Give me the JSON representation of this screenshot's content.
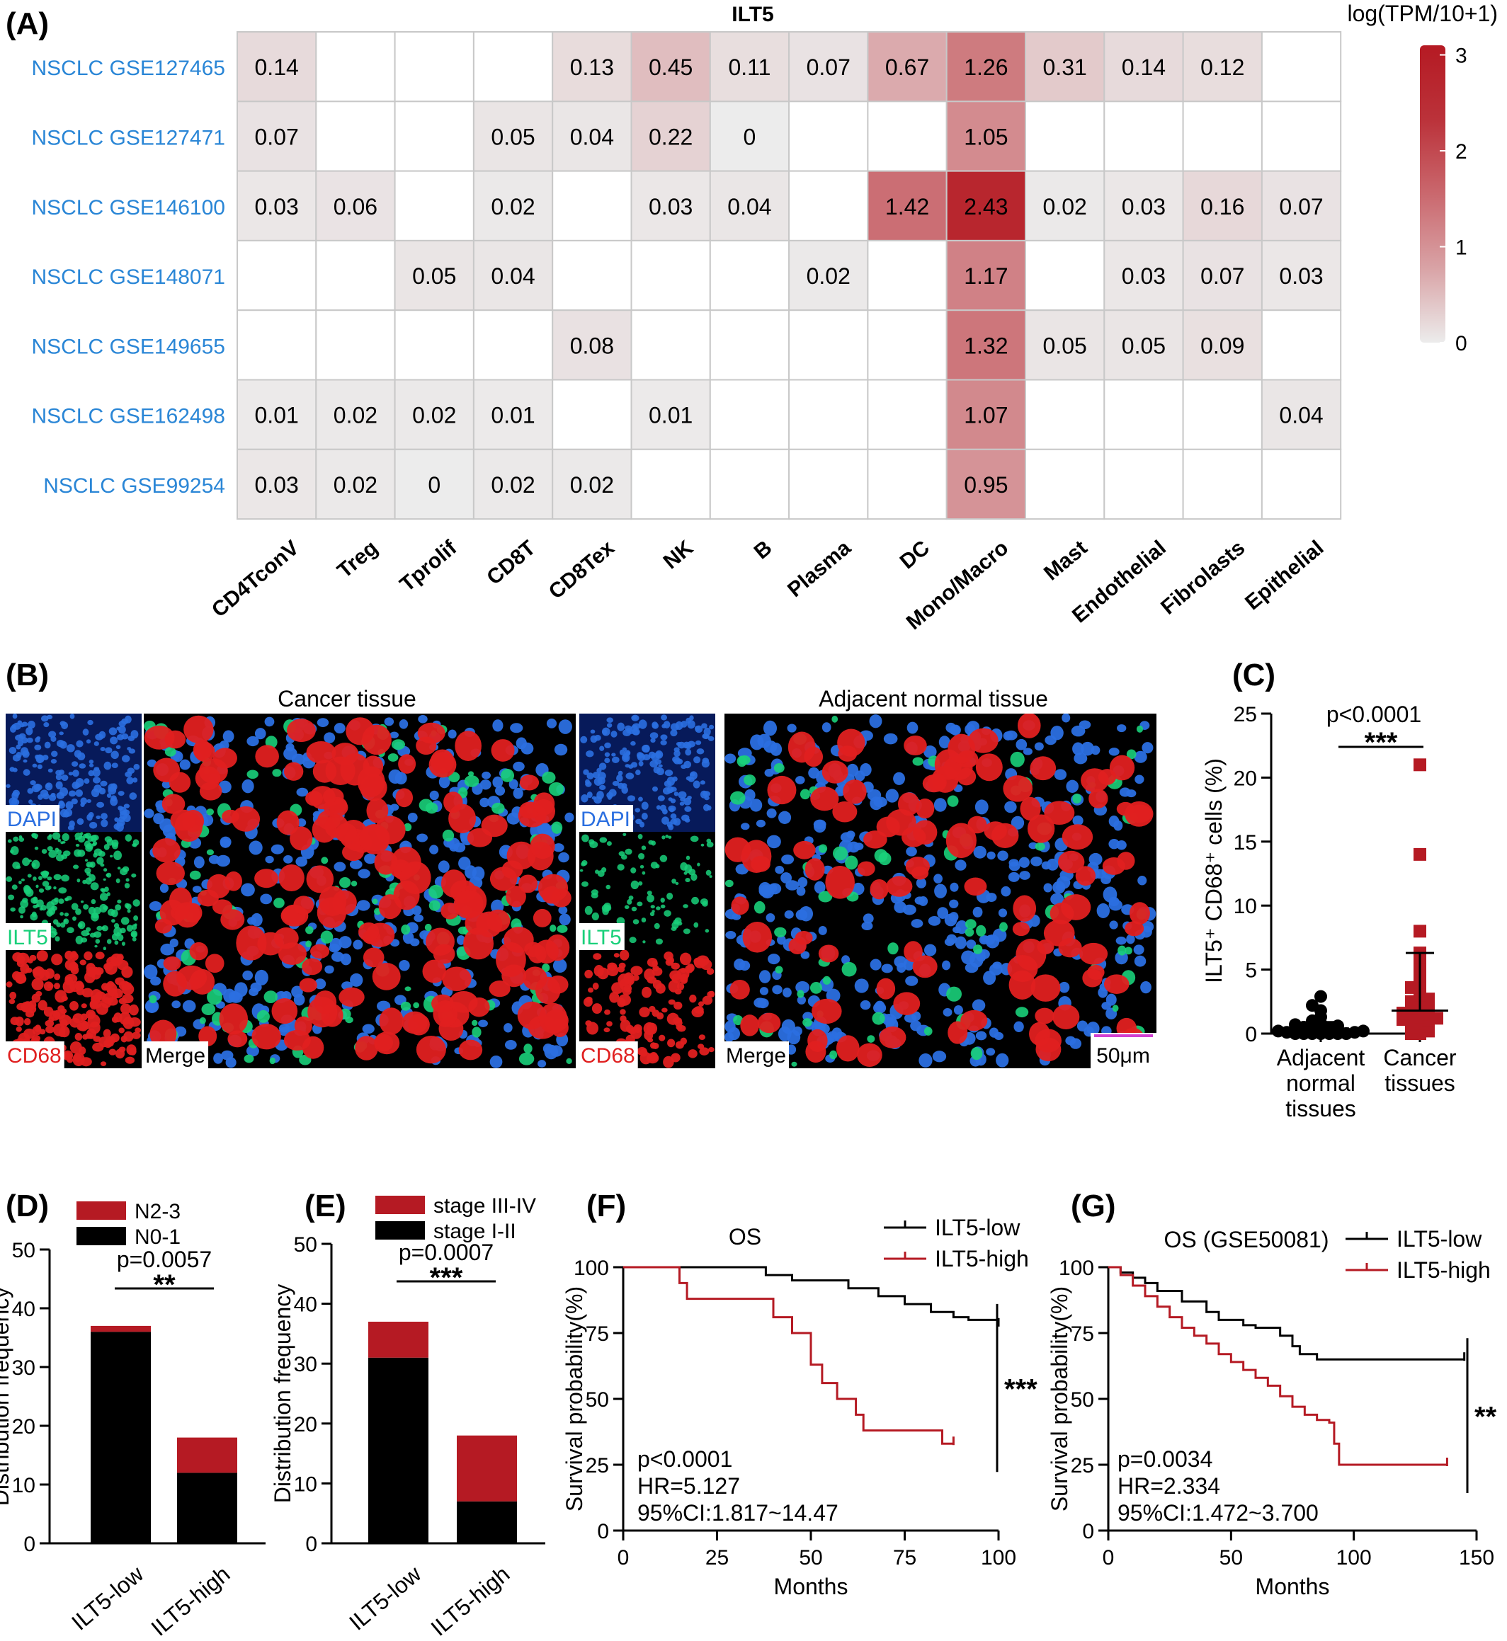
{
  "panels": {
    "A": "(A)",
    "B": "(B)",
    "C": "(C)",
    "D": "(D)",
    "E": "(E)",
    "F": "(F)",
    "G": "(G)"
  },
  "heatmap": {
    "title": "ILT5",
    "legend_title": "log(TPM/10+1)",
    "legend_ticks": [
      "3",
      "2",
      "1",
      "0"
    ],
    "legend_tick_values": [
      3,
      2,
      1,
      0
    ],
    "color_low": "#ececec",
    "color_high": "#b51a23",
    "rows": [
      "NSCLC GSE127465",
      "NSCLC GSE127471",
      "NSCLC GSE146100",
      "NSCLC GSE148071",
      "NSCLC GSE149655",
      "NSCLC GSE162498",
      "NSCLC GSE99254"
    ],
    "columns": [
      "CD4TconV",
      "Treg",
      "Tprolif",
      "CD8T",
      "CD8Tex",
      "NK",
      "B",
      "Plasma",
      "DC",
      "Mono/Macro",
      "Mast",
      "Endothelial",
      "Fibrolasts",
      "Epithelial"
    ],
    "values": [
      [
        "0.14",
        "",
        "",
        "",
        "0.13",
        "0.45",
        "0.11",
        "0.07",
        "0.67",
        "1.26",
        "0.31",
        "0.14",
        "0.12",
        ""
      ],
      [
        "0.07",
        "",
        "",
        "0.05",
        "0.04",
        "0.22",
        "0",
        "",
        "",
        "1.05",
        "",
        "",
        "",
        ""
      ],
      [
        "0.03",
        "0.06",
        "",
        "0.02",
        "",
        "0.03",
        "0.04",
        "",
        "1.42",
        "2.43",
        "0.02",
        "0.03",
        "0.16",
        "0.07"
      ],
      [
        "",
        "",
        "0.05",
        "0.04",
        "",
        "",
        "",
        "0.02",
        "",
        "1.17",
        "",
        "0.03",
        "0.07",
        "0.03"
      ],
      [
        "",
        "",
        "",
        "",
        "0.08",
        "",
        "",
        "",
        "",
        "1.32",
        "0.05",
        "0.05",
        "0.09",
        ""
      ],
      [
        "0.01",
        "0.02",
        "0.02",
        "0.01",
        "",
        "0.01",
        "",
        "",
        "",
        "1.07",
        "",
        "",
        "",
        "0.04"
      ],
      [
        "0.03",
        "0.02",
        "0",
        "0.02",
        "0.02",
        "",
        "",
        "",
        "",
        "0.95",
        "",
        "",
        "",
        ""
      ]
    ]
  },
  "micrographs": {
    "cancer_title": "Cancer tissue",
    "normal_title": "Adjacent normal tissue",
    "dapi": "DAPI",
    "ilt5": "ILT5",
    "cd68": "CD68",
    "merge": "Merge",
    "scale": "50μm",
    "colors": {
      "dapi": "#2b6fe0",
      "ilt5": "#19d07a",
      "cd68": "#e02020"
    }
  },
  "chart_data": [
    {
      "id": "C",
      "type": "scatter",
      "ylabel": "ILT5⁺ CD68⁺ cells (%)",
      "ylim": [
        0,
        25
      ],
      "yticks": [
        "0",
        "5",
        "10",
        "15",
        "20",
        "25"
      ],
      "categories": [
        "Adjacent normal tissues",
        "Cancer tissues"
      ],
      "category_lines": [
        [
          "Adjacent",
          "normal",
          "tissues"
        ],
        [
          "Cancer",
          "tissues"
        ]
      ],
      "pvalue": "p<0.0001",
      "sig": "***",
      "groups": [
        {
          "name": "Adjacent normal tissues",
          "color": "#000000",
          "mean": 0.4,
          "sd_upper": 0.9,
          "points": [
            0,
            0,
            0,
            0,
            0,
            0,
            0,
            0.1,
            0.1,
            0.2,
            0.2,
            0.3,
            0.3,
            0.4,
            0.5,
            0.6,
            0.7,
            0.8,
            1.0,
            1.3,
            1.8,
            2.2,
            2.9
          ]
        },
        {
          "name": "Cancer tissues",
          "color": "#b51a23",
          "mean": 1.8,
          "sd_upper": 6.3,
          "points": [
            0,
            0,
            0.2,
            0.3,
            0.5,
            0.6,
            0.8,
            0.9,
            1.0,
            1.1,
            1.2,
            1.3,
            1.4,
            1.5,
            1.6,
            1.8,
            2.0,
            2.1,
            2.3,
            2.5,
            2.7,
            3.0,
            3.3,
            3.6,
            4.0,
            4.5,
            5.0,
            5.5,
            6.0,
            6.3,
            8.0,
            14.0,
            21.0
          ]
        }
      ]
    },
    {
      "id": "D",
      "type": "bar",
      "stacked": true,
      "ylabel": "Distribution frequency",
      "ylim": [
        0,
        50
      ],
      "yticks": [
        "0",
        "10",
        "20",
        "30",
        "40",
        "50"
      ],
      "categories": [
        "ILT5-low",
        "ILT5-high"
      ],
      "series": [
        {
          "name": "N0-1",
          "color": "#000000",
          "values": [
            36,
            12
          ]
        },
        {
          "name": "N2-3",
          "color": "#b51a23",
          "values": [
            1,
            6
          ]
        }
      ],
      "pvalue": "p=0.0057",
      "sig": "**"
    },
    {
      "id": "E",
      "type": "bar",
      "stacked": true,
      "ylabel": "Distribution frequency",
      "ylim": [
        0,
        50
      ],
      "yticks": [
        "0",
        "10",
        "20",
        "30",
        "40",
        "50"
      ],
      "categories": [
        "ILT5-low",
        "ILT5-high"
      ],
      "series": [
        {
          "name": "stage I-II",
          "color": "#000000",
          "values": [
            31,
            7
          ]
        },
        {
          "name": "stage III-IV",
          "color": "#b51a23",
          "values": [
            6,
            11
          ]
        }
      ],
      "pvalue": "p=0.0007",
      "sig": "***"
    },
    {
      "id": "F",
      "type": "line",
      "title": "OS",
      "xlabel": "Months",
      "ylabel": "Survival probability(%)",
      "xlim": [
        0,
        100
      ],
      "ylim": [
        0,
        100
      ],
      "xticks": [
        "0",
        "25",
        "50",
        "75",
        "100"
      ],
      "yticks": [
        "0",
        "25",
        "50",
        "75",
        "100"
      ],
      "stats": [
        "p<0.0001",
        "HR=5.127",
        "95%CI:1.817~14.47"
      ],
      "sig": "***",
      "series": [
        {
          "name": "ILT5-low",
          "color": "#000000",
          "x": [
            0,
            38,
            45,
            60,
            68,
            75,
            82,
            88,
            92,
            100
          ],
          "y": [
            100,
            97,
            95,
            92,
            89,
            86,
            83,
            81,
            80,
            78
          ]
        },
        {
          "name": "ILT5-high",
          "color": "#b51a23",
          "x": [
            0,
            15,
            17,
            40,
            45,
            50,
            53,
            57,
            62,
            64,
            66,
            85,
            88
          ],
          "y": [
            100,
            94,
            88,
            81,
            75,
            63,
            56,
            50,
            44,
            38,
            38,
            33,
            33
          ]
        }
      ]
    },
    {
      "id": "G",
      "type": "line",
      "title": "OS (GSE50081)",
      "xlabel": "Months",
      "ylabel": "Survival probability(%)",
      "xlim": [
        0,
        150
      ],
      "ylim": [
        0,
        100
      ],
      "xticks": [
        "0",
        "50",
        "100",
        "150"
      ],
      "yticks": [
        "0",
        "25",
        "50",
        "75",
        "100"
      ],
      "stats": [
        "p=0.0034",
        "HR=2.334",
        "95%CI:1.472~3.700"
      ],
      "sig": "**",
      "series": [
        {
          "name": "ILT5-low",
          "color": "#000000",
          "x": [
            0,
            5,
            10,
            15,
            20,
            30,
            40,
            45,
            55,
            60,
            70,
            75,
            78,
            85,
            100,
            145
          ],
          "y": [
            100,
            98,
            96,
            94,
            91,
            87,
            83,
            80,
            78,
            77,
            74,
            70,
            67,
            65,
            65,
            65
          ]
        },
        {
          "name": "ILT5-high",
          "color": "#b51a23",
          "x": [
            0,
            5,
            10,
            15,
            20,
            25,
            30,
            35,
            40,
            45,
            50,
            55,
            60,
            65,
            70,
            75,
            80,
            85,
            90,
            92,
            94,
            138
          ],
          "y": [
            100,
            97,
            93,
            89,
            85,
            81,
            77,
            74,
            71,
            67,
            64,
            61,
            58,
            55,
            51,
            47,
            44,
            42,
            41,
            33,
            25,
            25
          ]
        }
      ]
    }
  ]
}
